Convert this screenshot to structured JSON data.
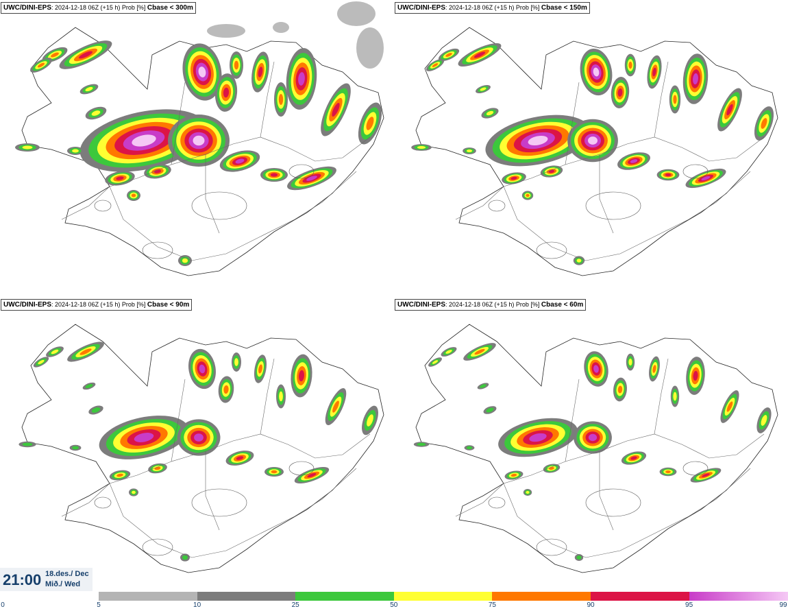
{
  "panels": [
    {
      "model": "UWC/DINI-EPS",
      "run": "2024-12-18 06Z (+15 h) Prob [%]",
      "threshold": "Cbase < 300m"
    },
    {
      "model": "UWC/DINI-EPS",
      "run": "2024-12-18 06Z (+15 h) Prob [%]",
      "threshold": "Cbase < 150m"
    },
    {
      "model": "UWC/DINI-EPS",
      "run": "2024-12-18 06Z (+15 h) Prob [%]",
      "threshold": "Cbase < 90m"
    },
    {
      "model": "UWC/DINI-EPS",
      "run": "2024-12-18 06Z (+15 h) Prob [%]",
      "threshold": "Cbase < 60m"
    }
  ],
  "valid_time": {
    "time": "21:00",
    "date_line": "18.des./ Dec",
    "day_line": "Mið./ Wed"
  },
  "legend": {
    "ticks": [
      "0",
      "5",
      "10",
      "25",
      "50",
      "75",
      "90",
      "95",
      "99"
    ],
    "bins": [
      {
        "from": 5,
        "to": 10,
        "color": "#b4b4b4"
      },
      {
        "from": 10,
        "to": 25,
        "color": "#7c7c7c"
      },
      {
        "from": 25,
        "to": 50,
        "color": "#3cc83c"
      },
      {
        "from": 50,
        "to": 75,
        "color": "#ffff32"
      },
      {
        "from": 75,
        "to": 90,
        "color": "#ff7800"
      },
      {
        "from": 90,
        "to": 95,
        "color": "#dc1446"
      },
      {
        "from": 95,
        "to": 99,
        "color": "#c83cc8",
        "to_color": "#f5c8f5"
      }
    ]
  }
}
